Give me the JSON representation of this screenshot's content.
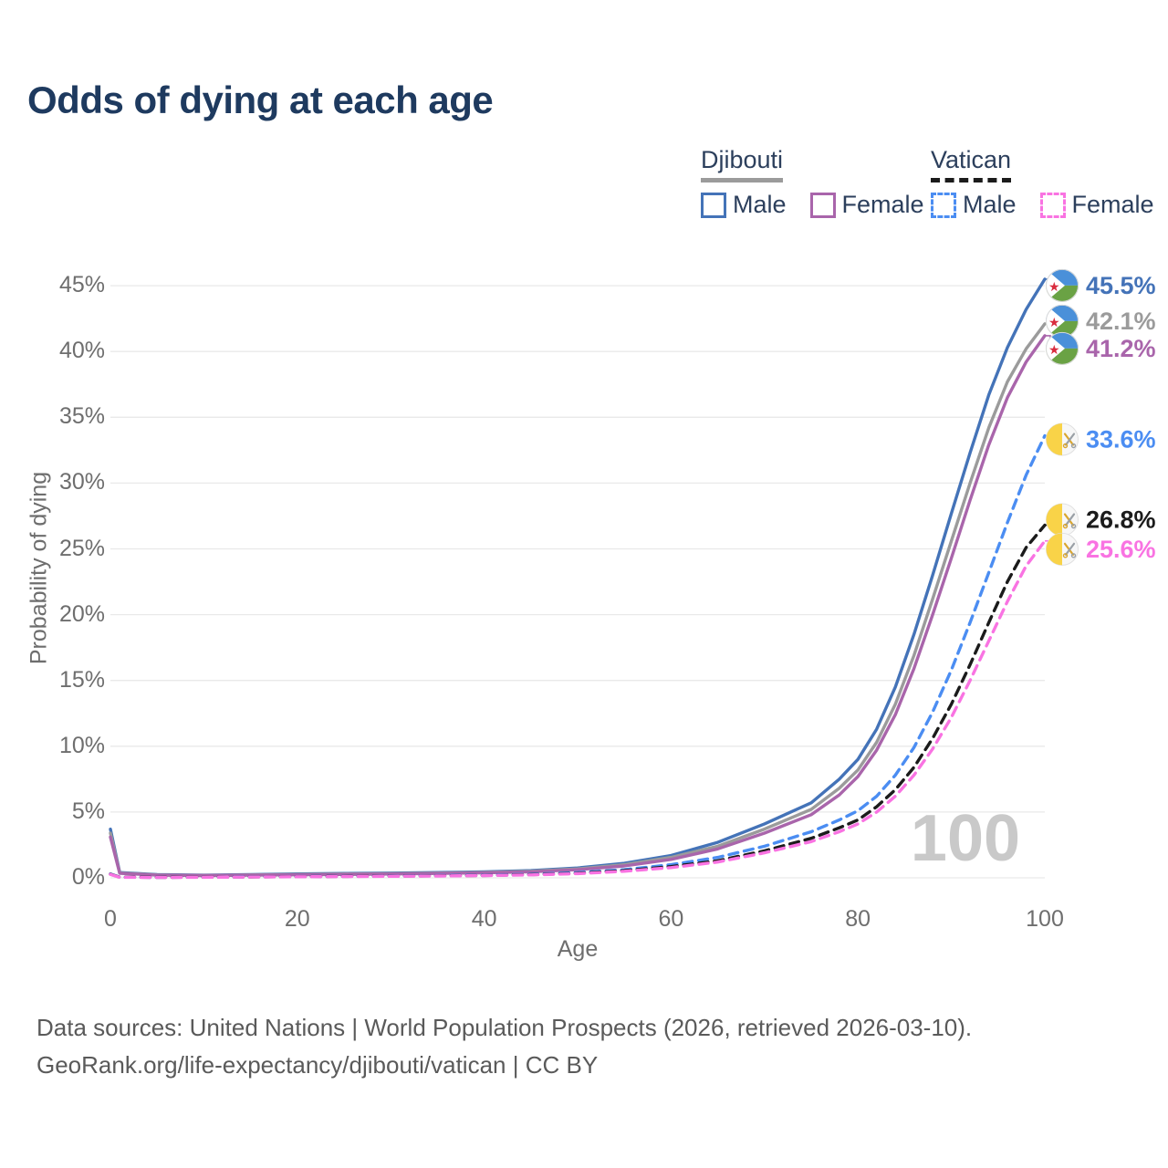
{
  "title": "Odds of dying at each age",
  "legend": {
    "groups": [
      {
        "name": "Djibouti",
        "line_style": "solid",
        "underline_color": "#9b9b9b",
        "items": [
          {
            "label": "Male",
            "color": "#4473b8"
          },
          {
            "label": "Female",
            "color": "#a965ab"
          }
        ]
      },
      {
        "name": "Vatican",
        "line_style": "dashed",
        "underline_color": "#1b1b1b",
        "items": [
          {
            "label": "Male",
            "color": "#4b8df2"
          },
          {
            "label": "Female",
            "color": "#f973e2"
          }
        ]
      }
    ]
  },
  "watermark": "100",
  "footer": {
    "line1": "Data sources: United Nations | World Population Prospects (2026, retrieved 2026-03-10).",
    "line2": "GeoRank.org/life-expectancy/djibouti/vatican | CC BY"
  },
  "colors": {
    "title": "#1e3a5f",
    "tick": "#6e6e6e",
    "grid": "#e9e9e9",
    "watermark": "#c9c9c9"
  },
  "icons": {
    "djibouti_flag": "djibouti-flag-icon",
    "vatican_flag": "vatican-flag-icon"
  },
  "chart_data": {
    "type": "line",
    "title": "Odds of dying at each age",
    "xlabel": "Age",
    "ylabel": "Probability of dying",
    "x_ticks": [
      0,
      20,
      40,
      60,
      80,
      100
    ],
    "y_ticks": [
      "0%",
      "5%",
      "10%",
      "15%",
      "20%",
      "25%",
      "30%",
      "35%",
      "40%",
      "45%"
    ],
    "y_tick_values": [
      0,
      5,
      10,
      15,
      20,
      25,
      30,
      35,
      40,
      45
    ],
    "xlim": [
      0,
      100
    ],
    "ylim": [
      0,
      46.5
    ],
    "grid": "horizontal",
    "legend_position": "top-right",
    "ages": [
      0,
      1,
      5,
      10,
      15,
      20,
      25,
      30,
      35,
      40,
      45,
      50,
      55,
      60,
      65,
      70,
      75,
      78,
      80,
      82,
      84,
      86,
      88,
      90,
      92,
      94,
      96,
      98,
      100
    ],
    "series": [
      {
        "name": "Djibouti Male",
        "country": "Djibouti",
        "sex": "Male",
        "color": "#4473b8",
        "dash": "solid",
        "end_label": "45.5%",
        "values": [
          3.7,
          0.4,
          0.25,
          0.2,
          0.25,
          0.3,
          0.33,
          0.36,
          0.4,
          0.45,
          0.55,
          0.75,
          1.1,
          1.7,
          2.7,
          4.1,
          5.7,
          7.5,
          9.0,
          11.3,
          14.5,
          18.5,
          23.0,
          27.7,
          32.3,
          36.7,
          40.3,
          43.2,
          45.5
        ]
      },
      {
        "name": "Djibouti Both sexes",
        "country": "Djibouti",
        "sex": "Both",
        "color": "#9b9b9b",
        "dash": "solid",
        "end_label": "42.1%",
        "values": [
          3.4,
          0.37,
          0.22,
          0.18,
          0.22,
          0.26,
          0.29,
          0.32,
          0.36,
          0.41,
          0.5,
          0.68,
          1.0,
          1.55,
          2.4,
          3.7,
          5.2,
          6.8,
          8.2,
          10.3,
          13.2,
          16.9,
          21.2,
          25.6,
          30.0,
          34.2,
          37.7,
          40.2,
          42.1
        ]
      },
      {
        "name": "Djibouti Female",
        "country": "Djibouti",
        "sex": "Female",
        "color": "#a965ab",
        "dash": "solid",
        "end_label": "41.2%",
        "values": [
          3.1,
          0.34,
          0.2,
          0.17,
          0.2,
          0.23,
          0.26,
          0.29,
          0.33,
          0.38,
          0.46,
          0.62,
          0.9,
          1.4,
          2.2,
          3.4,
          4.8,
          6.3,
          7.7,
          9.7,
          12.4,
          15.9,
          20.0,
          24.3,
          28.7,
          32.9,
          36.5,
          39.2,
          41.2
        ]
      },
      {
        "name": "Vatican Male",
        "country": "Vatican",
        "sex": "Male",
        "color": "#4b8df2",
        "dash": "dashed",
        "end_label": "33.6%",
        "values": [
          0.3,
          0.05,
          0.04,
          0.05,
          0.08,
          0.1,
          0.12,
          0.14,
          0.17,
          0.2,
          0.27,
          0.4,
          0.62,
          1.0,
          1.55,
          2.4,
          3.5,
          4.4,
          5.1,
          6.2,
          7.8,
          9.9,
          12.6,
          15.8,
          19.4,
          23.2,
          27.0,
          30.6,
          33.6
        ]
      },
      {
        "name": "Vatican Both sexes",
        "country": "Vatican",
        "sex": "Both",
        "color": "#1b1b1b",
        "dash": "dashed",
        "end_label": "26.8%",
        "values": [
          0.28,
          0.05,
          0.04,
          0.05,
          0.07,
          0.09,
          0.11,
          0.13,
          0.15,
          0.18,
          0.24,
          0.35,
          0.55,
          0.85,
          1.3,
          2.05,
          3.0,
          3.8,
          4.4,
          5.4,
          6.7,
          8.4,
          10.6,
          13.2,
          16.2,
          19.4,
          22.5,
          25.1,
          26.8
        ]
      },
      {
        "name": "Vatican Female",
        "country": "Vatican",
        "sex": "Female",
        "color": "#f973e2",
        "dash": "dashed",
        "end_label": "25.6%",
        "values": [
          0.26,
          0.04,
          0.03,
          0.04,
          0.06,
          0.08,
          0.1,
          0.12,
          0.14,
          0.17,
          0.22,
          0.32,
          0.5,
          0.78,
          1.2,
          1.9,
          2.75,
          3.5,
          4.1,
          5.0,
          6.2,
          7.8,
          9.8,
          12.2,
          15.0,
          18.0,
          21.0,
          23.7,
          25.6
        ]
      }
    ]
  }
}
